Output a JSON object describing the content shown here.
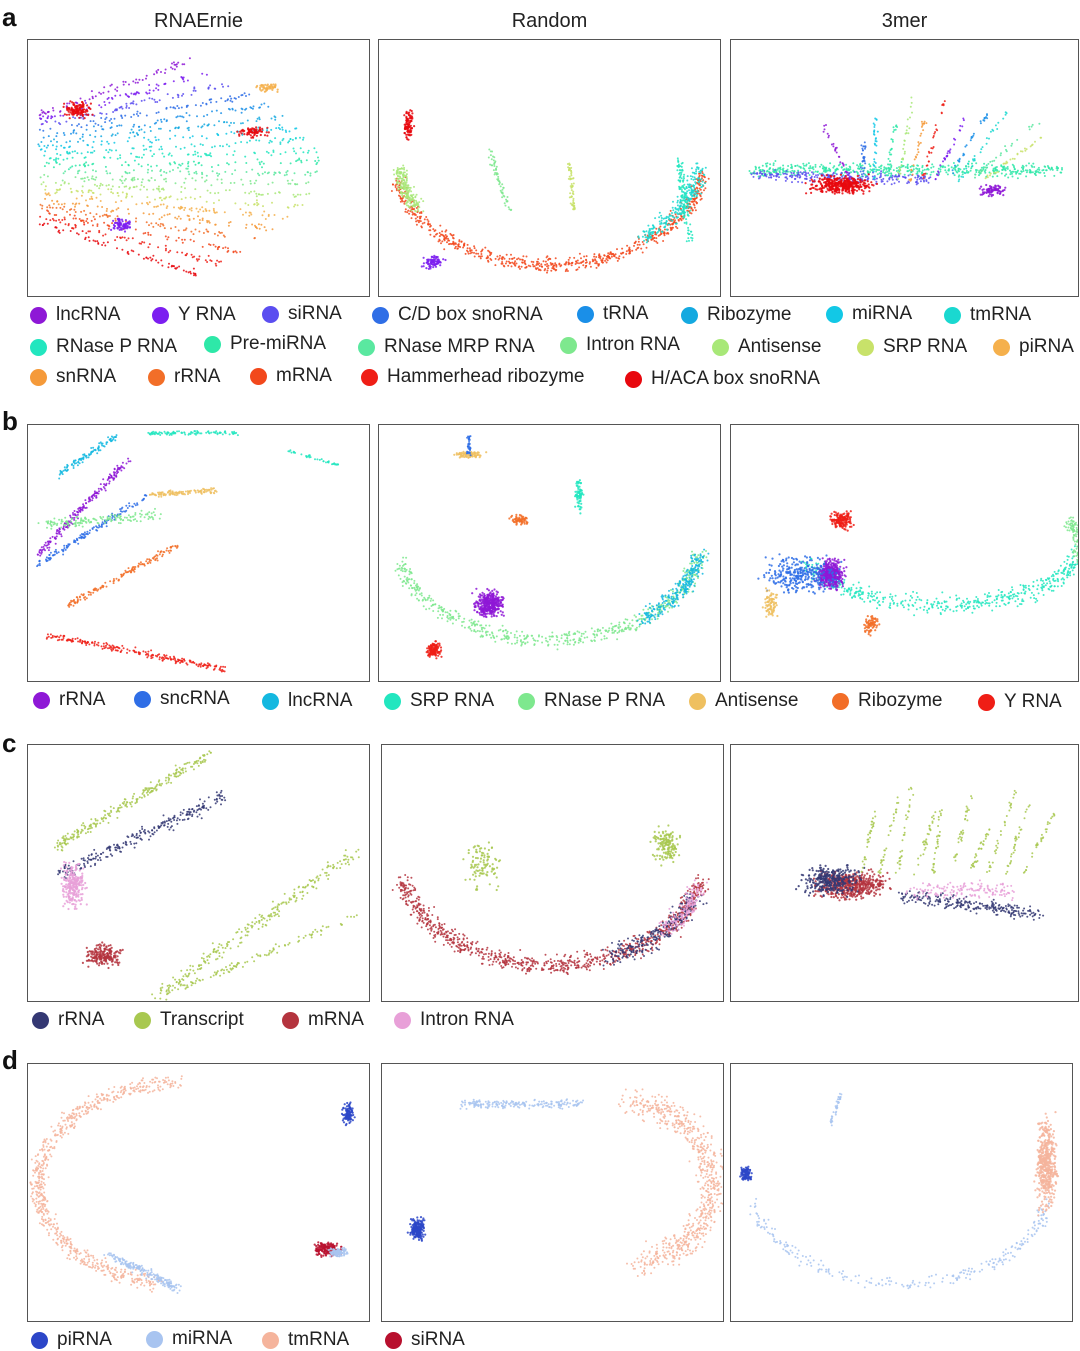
{
  "column_titles": [
    "RNAErnie",
    "Random",
    "3mer"
  ],
  "sections": [
    {
      "letter": "a",
      "legend": [
        {
          "label": "lncRNA",
          "color": "#8e18d6"
        },
        {
          "label": "Y RNA",
          "color": "#7c1ef0"
        },
        {
          "label": "siRNA",
          "color": "#5b4ef0"
        },
        {
          "label": "C/D box snoRNA",
          "color": "#2f6ee6"
        },
        {
          "label": "tRNA",
          "color": "#1a8fe8"
        },
        {
          "label": "Ribozyme",
          "color": "#14a9e0"
        },
        {
          "label": "miRNA",
          "color": "#12c8e6"
        },
        {
          "label": "tmRNA",
          "color": "#1ad8d0"
        },
        {
          "label": "RNase P RNA",
          "color": "#22e6bf"
        },
        {
          "label": "Pre-miRNA",
          "color": "#2ee8a8"
        },
        {
          "label": "RNase MRP RNA",
          "color": "#5ae8a0"
        },
        {
          "label": "Intron RNA",
          "color": "#7ee88e"
        },
        {
          "label": "Antisense",
          "color": "#a8e878"
        },
        {
          "label": "SRP RNA",
          "color": "#c8e26a"
        },
        {
          "label": "piRNA",
          "color": "#f5b04c"
        },
        {
          "label": "snRNA",
          "color": "#f59a3a"
        },
        {
          "label": "rRNA",
          "color": "#f26e28"
        },
        {
          "label": "mRNA",
          "color": "#f2481c"
        },
        {
          "label": "Hammerhead ribozyme",
          "color": "#ef1e16"
        },
        {
          "label": "H/ACA box snoRNA",
          "color": "#e8080e"
        }
      ]
    },
    {
      "letter": "b",
      "legend": [
        {
          "label": "rRNA",
          "color": "#8e18d6"
        },
        {
          "label": "sncRNA",
          "color": "#2f6ee6"
        },
        {
          "label": "lncRNA",
          "color": "#14b8e0"
        },
        {
          "label": "SRP RNA",
          "color": "#22e6bf"
        },
        {
          "label": "RNase P RNA",
          "color": "#7ee88e"
        },
        {
          "label": "Antisense",
          "color": "#efc060"
        },
        {
          "label": "Ribozyme",
          "color": "#f26e28"
        },
        {
          "label": "Y RNA",
          "color": "#ef1e16"
        }
      ]
    },
    {
      "letter": "c",
      "legend": [
        {
          "label": "rRNA",
          "color": "#343873"
        },
        {
          "label": "Transcript",
          "color": "#a8c850"
        },
        {
          "label": "mRNA",
          "color": "#b4343e"
        },
        {
          "label": "Intron RNA",
          "color": "#e8a0d8"
        }
      ]
    },
    {
      "letter": "d",
      "legend": [
        {
          "label": "piRNA",
          "color": "#2c46c8"
        },
        {
          "label": "miRNA",
          "color": "#a8c4f0"
        },
        {
          "label": "tmRNA",
          "color": "#f5b49c"
        },
        {
          "label": "siRNA",
          "color": "#b8102e"
        }
      ]
    }
  ]
}
